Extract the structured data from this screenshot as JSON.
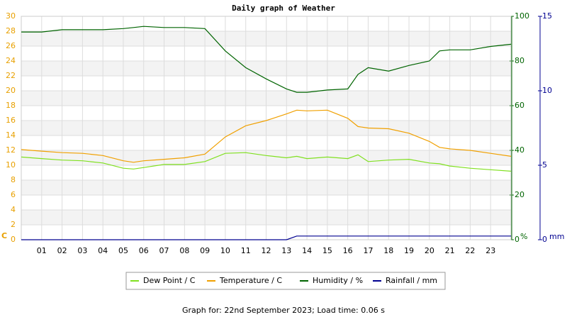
{
  "chart_data": {
    "type": "line",
    "title": "Daily graph of Weather",
    "footer": "Graph for: 22nd September 2023; Load time: 0.06 s",
    "y_unit": "C",
    "y2_unit": "%",
    "y3_unit": "mm",
    "xlim": [
      0,
      24
    ],
    "xticks": [
      {
        "value": 1,
        "label": "01"
      },
      {
        "value": 2,
        "label": "02"
      },
      {
        "value": 3,
        "label": "03"
      },
      {
        "value": 4,
        "label": "04"
      },
      {
        "value": 5,
        "label": "05"
      },
      {
        "value": 6,
        "label": "06"
      },
      {
        "value": 7,
        "label": "07"
      },
      {
        "value": 8,
        "label": "08"
      },
      {
        "value": 9,
        "label": "09"
      },
      10,
      11,
      12,
      13,
      14,
      15,
      16,
      17,
      18,
      19,
      20,
      21,
      22,
      23
    ],
    "ylim": [
      0,
      30
    ],
    "yticks": [
      0,
      2,
      4,
      6,
      8,
      10,
      12,
      14,
      16,
      18,
      20,
      22,
      24,
      26,
      28,
      30
    ],
    "y2lim": [
      0,
      100
    ],
    "y2ticks": [
      0,
      20,
      40,
      60,
      80,
      100
    ],
    "y3lim": [
      0,
      15
    ],
    "y3ticks": [
      0,
      5,
      10,
      15
    ],
    "y_color": "#e8a000",
    "y2_color": "#006400",
    "y3_color": "#000090",
    "grid": true,
    "x": [
      0,
      1,
      2,
      3,
      4,
      5,
      5.5,
      6,
      7,
      8,
      9,
      10,
      11,
      12,
      13,
      13.5,
      14,
      15,
      16,
      16.5,
      17,
      18,
      19,
      20,
      20.5,
      21,
      22,
      23,
      24
    ],
    "series": [
      {
        "name": "Dew Point / C",
        "color": "#80e020",
        "axis": "y",
        "values": [
          11.1,
          10.9,
          10.7,
          10.6,
          10.3,
          9.6,
          9.5,
          9.7,
          10.1,
          10.1,
          10.5,
          11.6,
          11.7,
          11.3,
          11.0,
          11.2,
          10.9,
          11.1,
          10.9,
          11.4,
          10.5,
          10.7,
          10.8,
          10.3,
          10.2,
          9.9,
          9.6,
          9.4,
          9.2
        ]
      },
      {
        "name": "Temperature / C",
        "color": "#f0a000",
        "axis": "y",
        "values": [
          12.1,
          11.9,
          11.7,
          11.6,
          11.3,
          10.6,
          10.4,
          10.6,
          10.8,
          11.0,
          11.5,
          13.8,
          15.3,
          16.0,
          16.9,
          17.4,
          17.3,
          17.4,
          16.3,
          15.2,
          15.0,
          14.9,
          14.3,
          13.2,
          12.4,
          12.2,
          12.0,
          11.6,
          11.2
        ]
      },
      {
        "name": "Humidity / %",
        "color": "#006400",
        "axis": "y2",
        "values": [
          93,
          93,
          94,
          94,
          94,
          94.5,
          95,
          95.5,
          95,
          95,
          94.5,
          84.5,
          77,
          72,
          67.5,
          66,
          66,
          67,
          67.5,
          74,
          77,
          75.5,
          78,
          80,
          84.5,
          85,
          85,
          86.5,
          87.5
        ]
      },
      {
        "name": "Rainfall / mm",
        "color": "#000090",
        "axis": "y3",
        "values": [
          0,
          0,
          0,
          0,
          0,
          0,
          0,
          0,
          0,
          0,
          0,
          0,
          0,
          0,
          0,
          0.25,
          0.25,
          0.25,
          0.25,
          0.25,
          0.25,
          0.25,
          0.25,
          0.25,
          0.25,
          0.25,
          0.25,
          0.25,
          0.25
        ]
      }
    ]
  }
}
